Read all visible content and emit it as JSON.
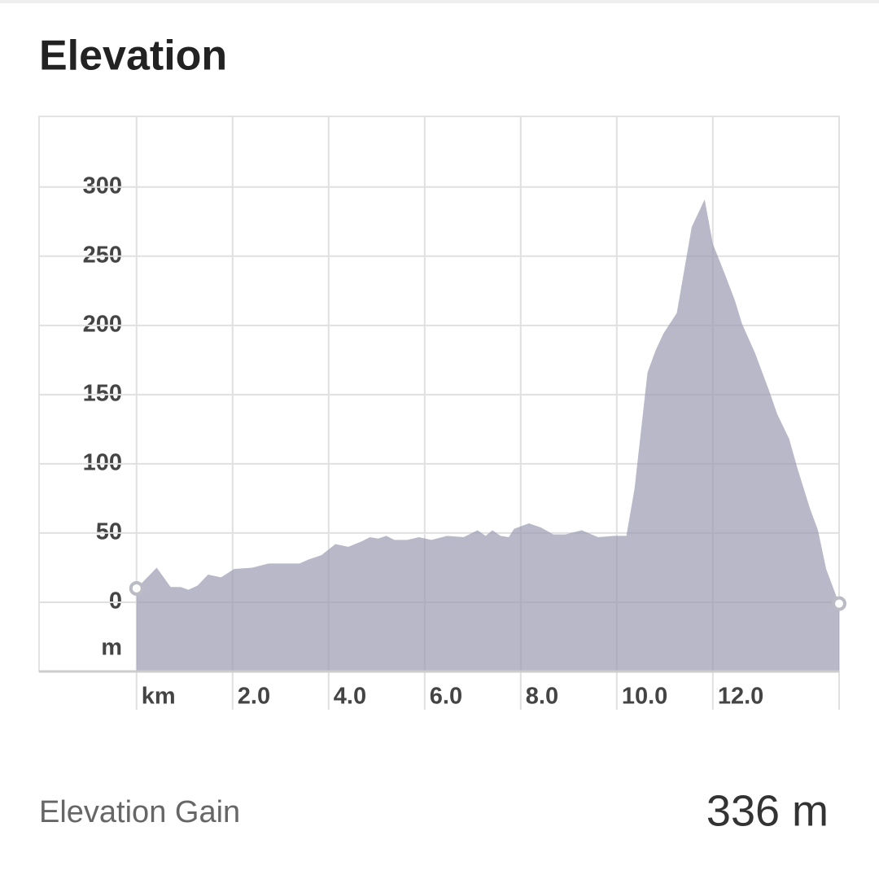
{
  "chart_data": {
    "type": "area",
    "title": "Elevation",
    "y_label": "m",
    "x": [
      0,
      0.42,
      0.71,
      0.92,
      1.08,
      1.27,
      1.49,
      1.76,
      2.03,
      2.41,
      2.75,
      3.08,
      3.39,
      3.59,
      3.85,
      4.14,
      4.41,
      4.69,
      4.86,
      5.03,
      5.2,
      5.37,
      5.63,
      5.88,
      6.14,
      6.47,
      6.81,
      7.1,
      7.27,
      7.41,
      7.58,
      7.75,
      7.86,
      8.17,
      8.42,
      8.68,
      8.93,
      9.27,
      9.61,
      9.95,
      10.2,
      10.37,
      10.64,
      10.81,
      10.97,
      11.25,
      11.56,
      11.83,
      12.0,
      12.24,
      12.46,
      12.61,
      12.88,
      13.17,
      13.34,
      13.59,
      13.76,
      14.02,
      14.19,
      14.36,
      14.63
    ],
    "values": [
      10,
      25,
      11,
      11,
      9,
      12,
      20,
      18,
      24,
      25,
      28,
      28,
      28,
      31,
      34,
      42,
      40,
      44,
      47,
      46,
      48,
      45,
      45,
      47,
      45,
      48,
      47,
      52,
      48,
      52,
      48,
      47,
      53,
      57,
      54,
      49,
      49,
      52,
      47,
      48,
      48,
      82,
      166,
      182,
      194,
      209,
      271,
      291,
      259,
      238,
      218,
      201,
      180,
      153,
      136,
      118,
      97,
      68,
      52,
      24,
      -1
    ],
    "color": "#9a9ab0",
    "xlim": [
      -2.03,
      14.63
    ],
    "xticks": [
      {
        "value": 0,
        "label": "km"
      },
      {
        "value": 2,
        "label": "2.0"
      },
      {
        "value": 4,
        "label": "4.0"
      },
      {
        "value": 6,
        "label": "6.0"
      },
      {
        "value": 8,
        "label": "8.0"
      },
      {
        "value": 10,
        "label": "10.0"
      },
      {
        "value": 12,
        "label": "12.0"
      }
    ],
    "ylim": [
      -50,
      351
    ],
    "yticks": [
      0,
      50,
      100,
      150,
      200,
      250,
      300
    ],
    "grid": true
  },
  "stat": {
    "label": "Elevation Gain",
    "value": "336 m"
  }
}
